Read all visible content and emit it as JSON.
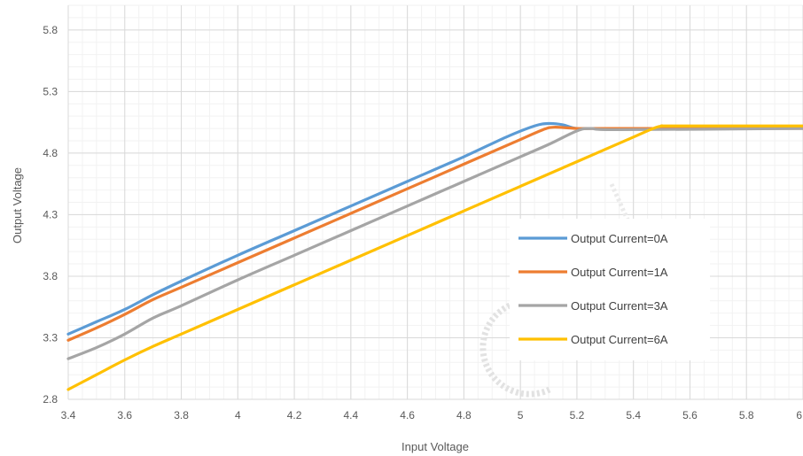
{
  "chart_data": {
    "type": "line",
    "title": "",
    "xlabel": "Input Voltage",
    "ylabel": "Output Voltage",
    "xlim": [
      3.4,
      6
    ],
    "ylim": [
      2.8,
      6.0
    ],
    "x_ticks": [
      "3.4",
      "3.6",
      "3.8",
      "4",
      "4.2",
      "4.4",
      "4.6",
      "4.8",
      "5",
      "5.2",
      "5.4",
      "5.6",
      "5.8",
      "6"
    ],
    "y_ticks": [
      "2.8",
      "3.3",
      "3.8",
      "4.3",
      "4.8",
      "5.3",
      "5.8"
    ],
    "grid": true,
    "legend_position": "center-right",
    "series": [
      {
        "name": "Output Current=0A",
        "color": "#5B9BD5",
        "points": [
          [
            3.4,
            3.33
          ],
          [
            3.5,
            3.43
          ],
          [
            3.6,
            3.53
          ],
          [
            3.7,
            3.65
          ],
          [
            3.8,
            3.76
          ],
          [
            4.0,
            3.97
          ],
          [
            4.2,
            4.17
          ],
          [
            4.4,
            4.37
          ],
          [
            4.6,
            4.57
          ],
          [
            4.8,
            4.77
          ],
          [
            4.95,
            4.93
          ],
          [
            5.05,
            5.02
          ],
          [
            5.1,
            5.04
          ],
          [
            5.15,
            5.03
          ],
          [
            5.2,
            5.0
          ],
          [
            5.3,
            5.0
          ],
          [
            6.0,
            5.0
          ]
        ]
      },
      {
        "name": "Output Current=1A",
        "color": "#ED7D31",
        "points": [
          [
            3.4,
            3.28
          ],
          [
            3.5,
            3.38
          ],
          [
            3.6,
            3.49
          ],
          [
            3.7,
            3.61
          ],
          [
            3.8,
            3.71
          ],
          [
            4.0,
            3.91
          ],
          [
            4.2,
            4.11
          ],
          [
            4.4,
            4.31
          ],
          [
            4.6,
            4.51
          ],
          [
            4.8,
            4.71
          ],
          [
            5.0,
            4.91
          ],
          [
            5.08,
            4.99
          ],
          [
            5.12,
            5.01
          ],
          [
            5.2,
            5.0
          ],
          [
            5.3,
            5.0
          ],
          [
            6.0,
            5.0
          ]
        ]
      },
      {
        "name": "Output Current=3A",
        "color": "#A5A5A5",
        "points": [
          [
            3.4,
            3.13
          ],
          [
            3.5,
            3.22
          ],
          [
            3.6,
            3.33
          ],
          [
            3.7,
            3.46
          ],
          [
            3.8,
            3.56
          ],
          [
            4.0,
            3.77
          ],
          [
            4.2,
            3.97
          ],
          [
            4.4,
            4.17
          ],
          [
            4.6,
            4.37
          ],
          [
            4.8,
            4.57
          ],
          [
            5.0,
            4.77
          ],
          [
            5.1,
            4.87
          ],
          [
            5.2,
            4.98
          ],
          [
            5.25,
            5.0
          ],
          [
            5.35,
            4.99
          ],
          [
            6.0,
            5.0
          ]
        ]
      },
      {
        "name": "Output Current=6A",
        "color": "#FFC000",
        "points": [
          [
            3.4,
            2.88
          ],
          [
            3.5,
            3.0
          ],
          [
            3.6,
            3.12
          ],
          [
            3.7,
            3.23
          ],
          [
            3.8,
            3.33
          ],
          [
            4.0,
            3.53
          ],
          [
            4.2,
            3.73
          ],
          [
            4.4,
            3.93
          ],
          [
            4.6,
            4.13
          ],
          [
            4.8,
            4.33
          ],
          [
            5.0,
            4.53
          ],
          [
            5.2,
            4.73
          ],
          [
            5.4,
            4.93
          ],
          [
            5.47,
            5.0
          ],
          [
            5.5,
            5.02
          ],
          [
            5.55,
            5.02
          ],
          [
            6.0,
            5.02
          ]
        ]
      }
    ]
  }
}
